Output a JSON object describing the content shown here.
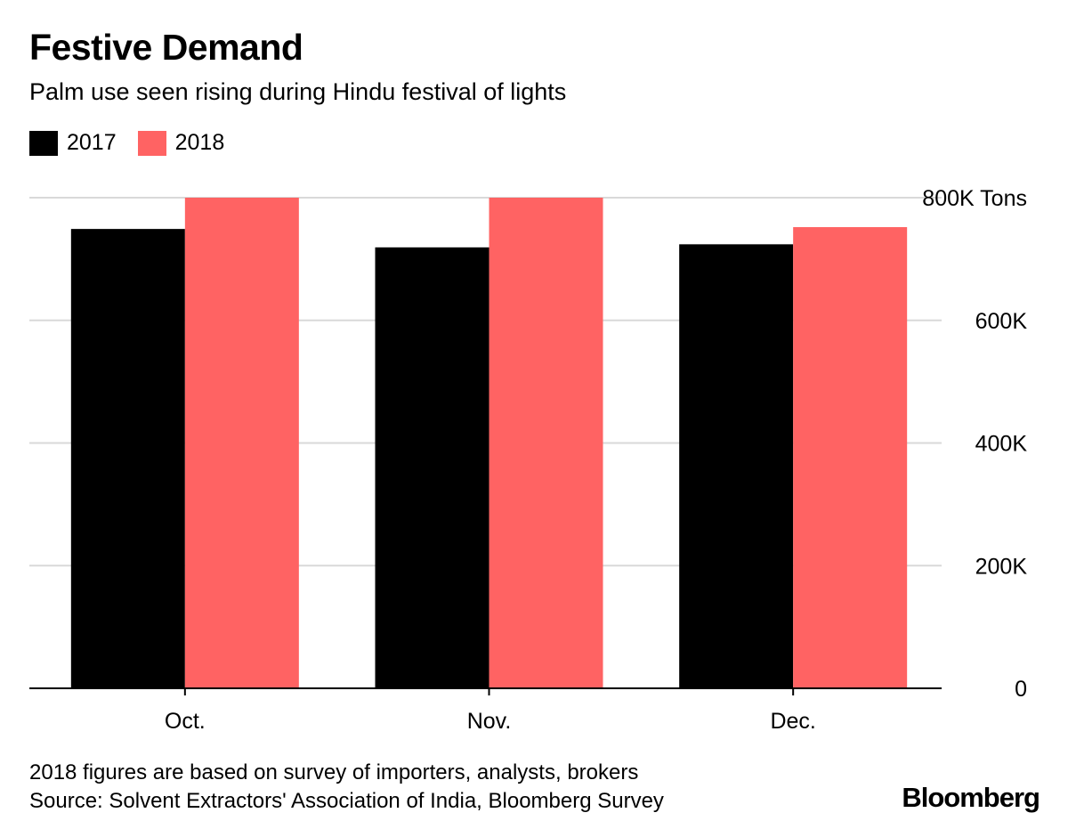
{
  "chart_data": {
    "type": "bar",
    "title": "Festive Demand",
    "subtitle": "Palm use seen rising during Hindu festival of lights",
    "categories": [
      "Oct.",
      "Nov.",
      "Dec."
    ],
    "series": [
      {
        "name": "2017",
        "color": "#000000",
        "values": [
          749000,
          719000,
          724000
        ]
      },
      {
        "name": "2018",
        "color": "#ff6363",
        "values": [
          800000,
          800000,
          752000
        ]
      }
    ],
    "ylim": [
      0,
      800000
    ],
    "yticks": [
      0,
      200000,
      400000,
      600000,
      800000
    ],
    "ytick_labels": [
      "0",
      "200K",
      "400K",
      "600K",
      "800K Tons"
    ],
    "y_axis_position": "right",
    "grid": true,
    "legend_position": "top-left"
  },
  "footnote": {
    "line1": "2018 figures are based on survey of importers, analysts, brokers",
    "line2": "Source: Solvent Extractors' Association of India, Bloomberg Survey"
  },
  "brand": "Bloomberg"
}
